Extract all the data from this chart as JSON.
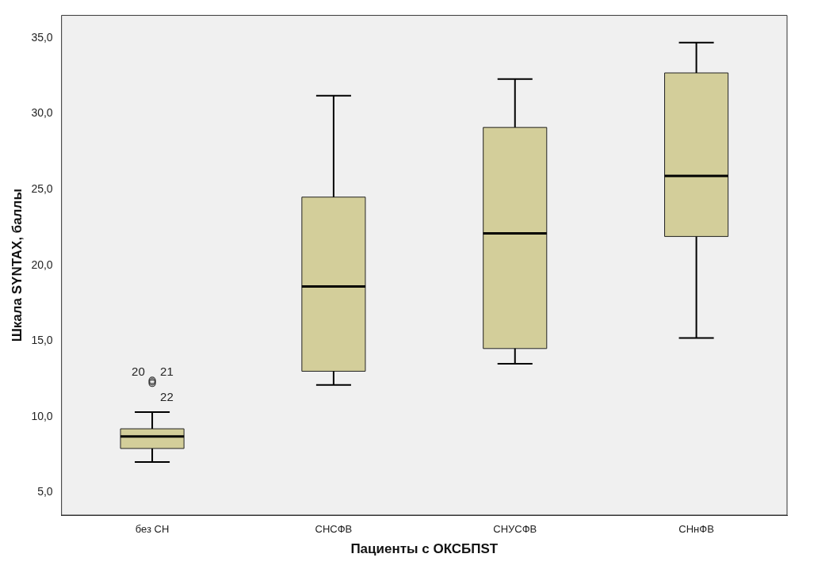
{
  "chart_data": {
    "type": "box",
    "xlabel": "Пациенты с ОКСБПST",
    "ylabel": "Шкала SYNTAX, баллы",
    "categories": [
      "без СН",
      "СНСФВ",
      "СНУСФВ",
      "СНнФВ"
    ],
    "color": "#d3ce9a",
    "boxes": [
      {
        "low": 7.0,
        "q1": 7.9,
        "median": 8.7,
        "q3": 9.2,
        "high": 10.3,
        "outliers": [
          12.4,
          12.3,
          12.2
        ]
      },
      {
        "low": 12.1,
        "q1": 13.0,
        "median": 18.6,
        "q3": 24.5,
        "high": 31.2
      },
      {
        "low": 13.5,
        "q1": 14.5,
        "median": 22.1,
        "q3": 29.1,
        "high": 32.3
      },
      {
        "low": 15.2,
        "q1": 21.9,
        "median": 25.9,
        "q3": 32.7,
        "high": 34.7
      }
    ],
    "ylim": [
      3.5,
      36.5
    ],
    "yticks": [
      {
        "value": 5,
        "label": "5,0"
      },
      {
        "value": 10,
        "label": "10,0"
      },
      {
        "value": 15,
        "label": "15,0"
      },
      {
        "value": 20,
        "label": "20,0"
      },
      {
        "value": 25,
        "label": "25,0"
      },
      {
        "value": 30,
        "label": "30,0"
      },
      {
        "value": 35,
        "label": "35,0"
      }
    ],
    "annotations": [
      "20",
      "21",
      "22"
    ],
    "grid": false,
    "legend": false
  }
}
